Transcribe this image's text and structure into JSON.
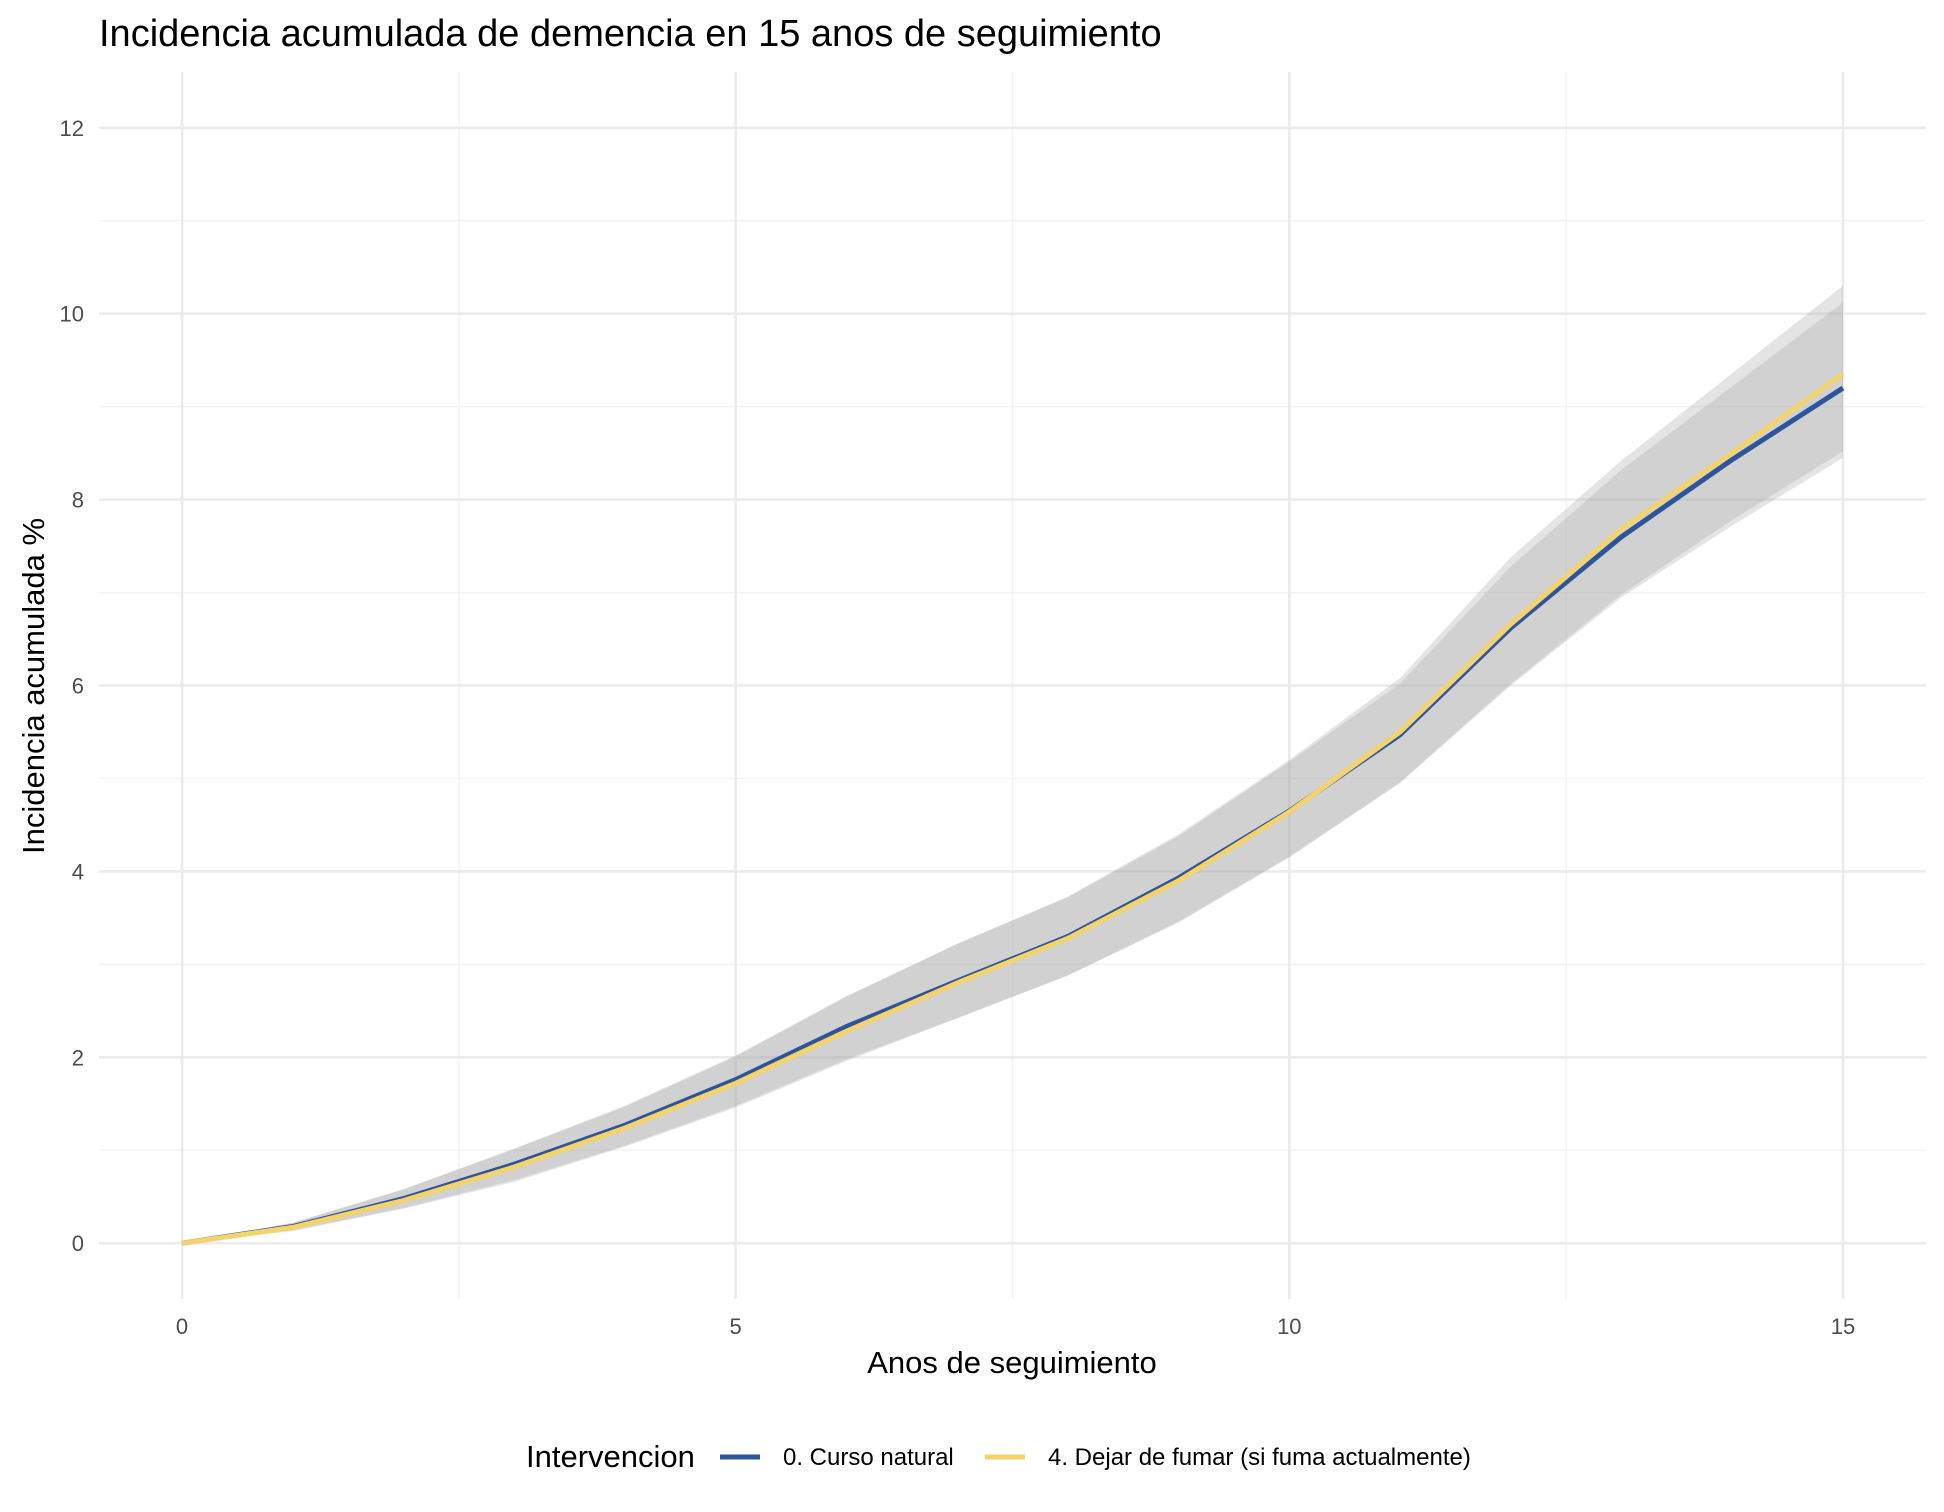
{
  "chart_data": {
    "type": "line",
    "title": "Incidencia acumulada de demencia en 15 anos de seguimiento",
    "xlabel": "Anos de seguimiento",
    "ylabel": "Incidencia acumulada %",
    "xlim": [
      -0.75,
      15.75
    ],
    "ylim": [
      -0.6,
      12.6
    ],
    "x_ticks": [
      0,
      5,
      10,
      15
    ],
    "y_ticks": [
      0,
      2,
      4,
      6,
      8,
      10,
      12
    ],
    "grid": true,
    "legend": {
      "title": "Intervencion",
      "position": "bottom"
    },
    "x": [
      0,
      1,
      2,
      3,
      4,
      5,
      6,
      7,
      8,
      9,
      10,
      11,
      12,
      13,
      14,
      15
    ],
    "series": [
      {
        "name": "0. Curso natural",
        "color": "#2c559e",
        "values": [
          0,
          0.18,
          0.48,
          0.85,
          1.27,
          1.76,
          2.33,
          2.82,
          3.3,
          3.93,
          4.65,
          5.47,
          6.62,
          7.6,
          8.43,
          9.2
        ],
        "ci_lower": [
          0,
          0.14,
          0.38,
          0.68,
          1.05,
          1.48,
          1.98,
          2.42,
          2.88,
          3.45,
          4.15,
          4.95,
          6.0,
          6.95,
          7.72,
          8.45
        ],
        "ci_upper": [
          0,
          0.22,
          0.58,
          1.02,
          1.48,
          2.02,
          2.66,
          3.22,
          3.72,
          4.38,
          5.18,
          6.02,
          7.28,
          8.32,
          9.22,
          10.12
        ]
      },
      {
        "name": "4. Dejar de fumar (si fuma actualmente)",
        "color": "#f5d36b",
        "values": [
          0,
          0.17,
          0.46,
          0.82,
          1.24,
          1.72,
          2.28,
          2.8,
          3.28,
          3.9,
          4.64,
          5.5,
          6.66,
          7.68,
          8.5,
          9.35
        ],
        "ci_lower": [
          0,
          0.13,
          0.37,
          0.66,
          1.04,
          1.46,
          1.96,
          2.42,
          2.88,
          3.46,
          4.16,
          4.96,
          6.02,
          6.98,
          7.78,
          8.52
        ],
        "ci_upper": [
          0,
          0.22,
          0.58,
          1.01,
          1.47,
          2.01,
          2.65,
          3.22,
          3.73,
          4.4,
          5.2,
          6.08,
          7.38,
          8.42,
          9.36,
          10.3
        ]
      }
    ]
  }
}
